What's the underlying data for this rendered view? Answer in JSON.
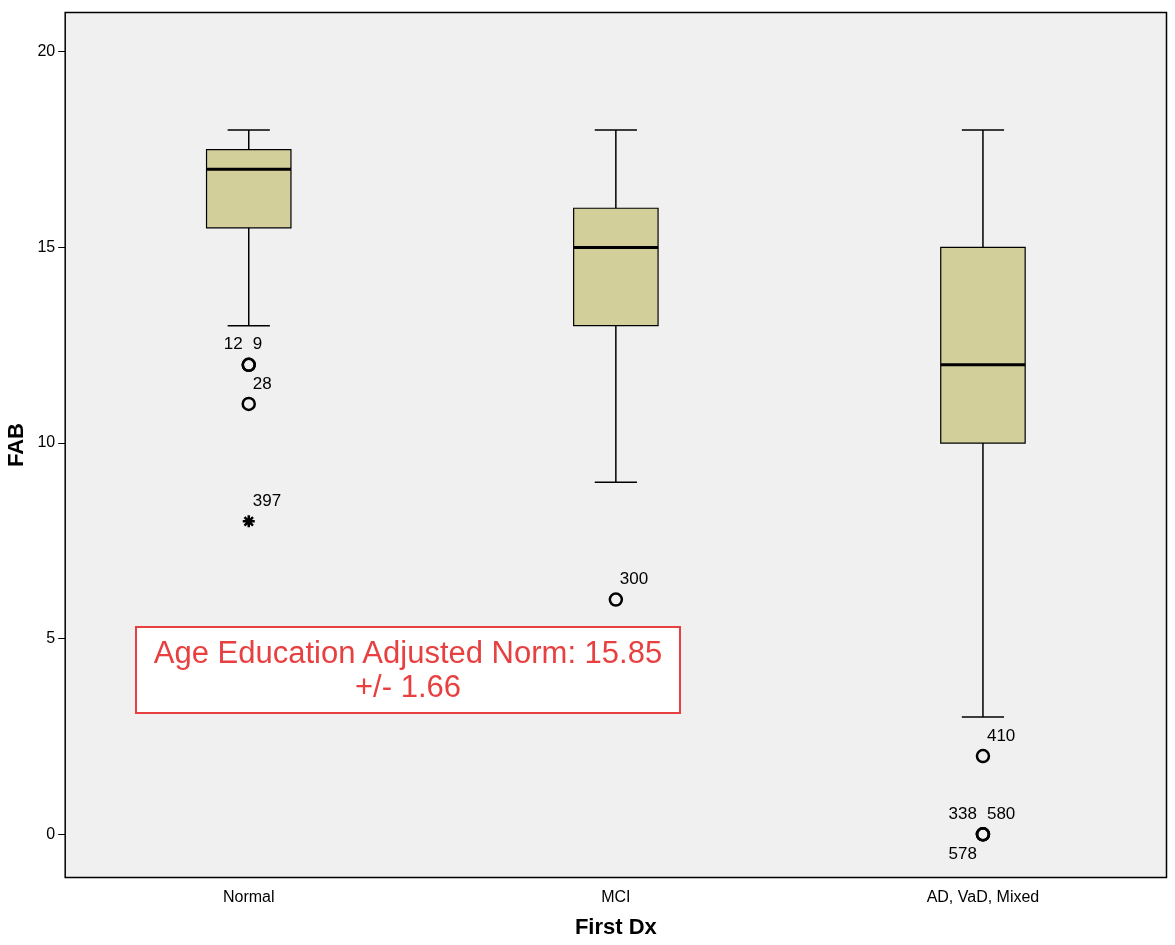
{
  "chart_data": {
    "type": "box",
    "xlabel": "First Dx",
    "ylabel": "FAB",
    "categories": [
      "Normal",
      "MCI",
      "AD, VaD, Mixed"
    ],
    "color": "#d3cf9b",
    "boxes": [
      {
        "low": 13,
        "q1": 15.5,
        "median": 17,
        "q3": 17.5,
        "high": 18,
        "outliers": [
          12,
          12,
          11,
          8
        ]
      },
      {
        "low": 9,
        "q1": 13,
        "median": 15,
        "q3": 16,
        "high": 18,
        "outliers": [
          6
        ]
      },
      {
        "low": 3,
        "q1": 10,
        "median": 12,
        "q3": 15,
        "high": 18,
        "outliers": [
          2,
          0,
          0,
          0
        ]
      }
    ],
    "ylim": [
      -1.1,
      21
    ],
    "yticks": [
      0,
      5,
      10,
      15,
      20
    ],
    "grid": false,
    "legend": false,
    "marker": "circle",
    "annotations": [
      "9",
      "12",
      "28",
      "397",
      "300",
      "410",
      "580",
      "338",
      "578",
      "Age Education Adjusted Norm: 15.85 +/- 1.66"
    ]
  }
}
